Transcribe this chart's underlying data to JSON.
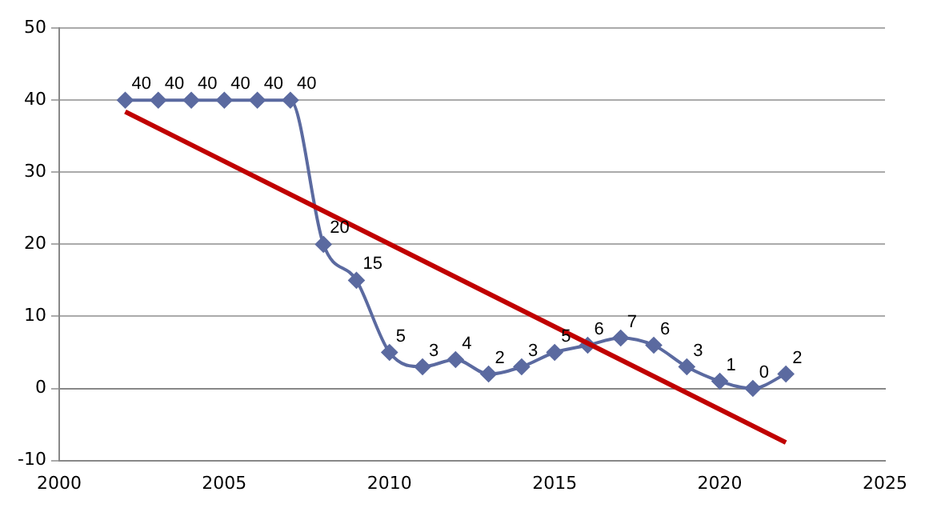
{
  "chart_data": {
    "type": "line",
    "x": [
      2002,
      2003,
      2004,
      2005,
      2006,
      2007,
      2008,
      2009,
      2010,
      2011,
      2012,
      2013,
      2014,
      2015,
      2016,
      2017,
      2018,
      2019,
      2020,
      2021,
      2022
    ],
    "series": [
      {
        "color": "#5b6aa0",
        "marker": "diamond",
        "data_labels": true,
        "values": [
          40,
          40,
          40,
          40,
          40,
          40,
          20,
          15,
          5,
          3,
          4,
          2,
          3,
          5,
          6,
          7,
          6,
          3,
          1,
          0,
          2
        ]
      },
      {
        "color": "#c00000",
        "marker": "none",
        "x": [
          2002,
          2022
        ],
        "values": [
          38.4,
          -7.5
        ]
      }
    ],
    "xlim": [
      2000,
      2025
    ],
    "xticks": [
      2000,
      2005,
      2010,
      2015,
      2020,
      2025
    ],
    "ylim": [
      -10,
      50
    ],
    "yticks": [
      -10,
      0,
      10,
      20,
      30,
      40,
      50
    ],
    "grid": "y",
    "legend": false
  }
}
